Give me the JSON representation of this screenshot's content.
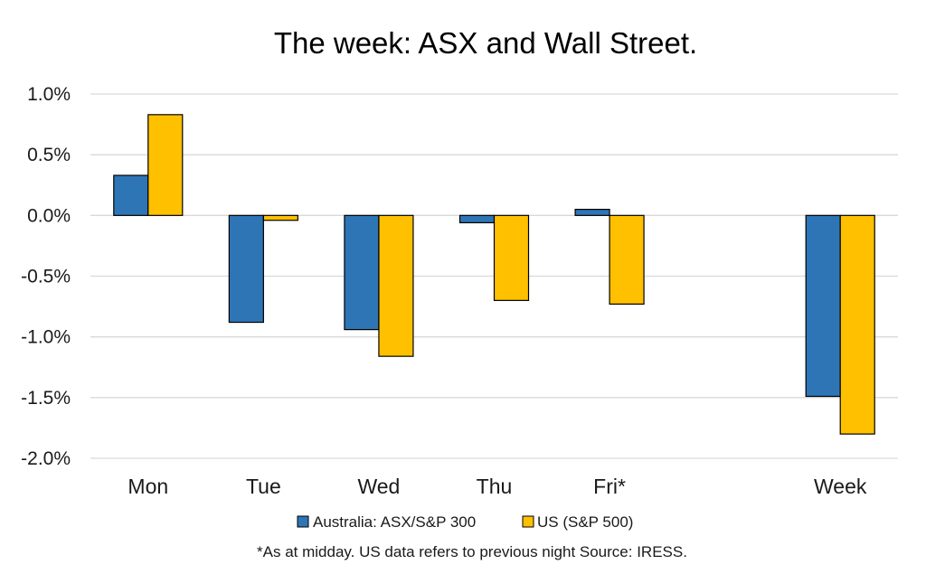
{
  "chart_data": {
    "type": "bar",
    "title": "The week:  ASX and Wall Street.",
    "categories": [
      "Mon",
      "Tue",
      "Wed",
      "Thu",
      "Fri*",
      "",
      "Week"
    ],
    "series": [
      {
        "name": "Australia: ASX/S&P 300",
        "color": "#2E75B6",
        "values": [
          0.33,
          -0.88,
          -0.94,
          -0.06,
          0.05,
          null,
          -1.49
        ]
      },
      {
        "name": "US (S&P 500)",
        "color": "#FFC000",
        "values": [
          0.83,
          -0.04,
          -1.16,
          -0.7,
          -0.73,
          null,
          -1.8
        ]
      }
    ],
    "ylim": [
      -2.0,
      1.0
    ],
    "yticks": [
      1.0,
      0.5,
      0.0,
      -0.5,
      -1.0,
      -1.5,
      -2.0
    ],
    "ytick_labels": [
      "1.0%",
      "0.5%",
      "0.0%",
      "-0.5%",
      "-1.0%",
      "-1.5%",
      "-2.0%"
    ],
    "xlabel": "",
    "ylabel": "",
    "grid": true,
    "legend_position": "bottom",
    "footnote": "*As at midday. US data refers to previous night  Source:  IRESS."
  }
}
